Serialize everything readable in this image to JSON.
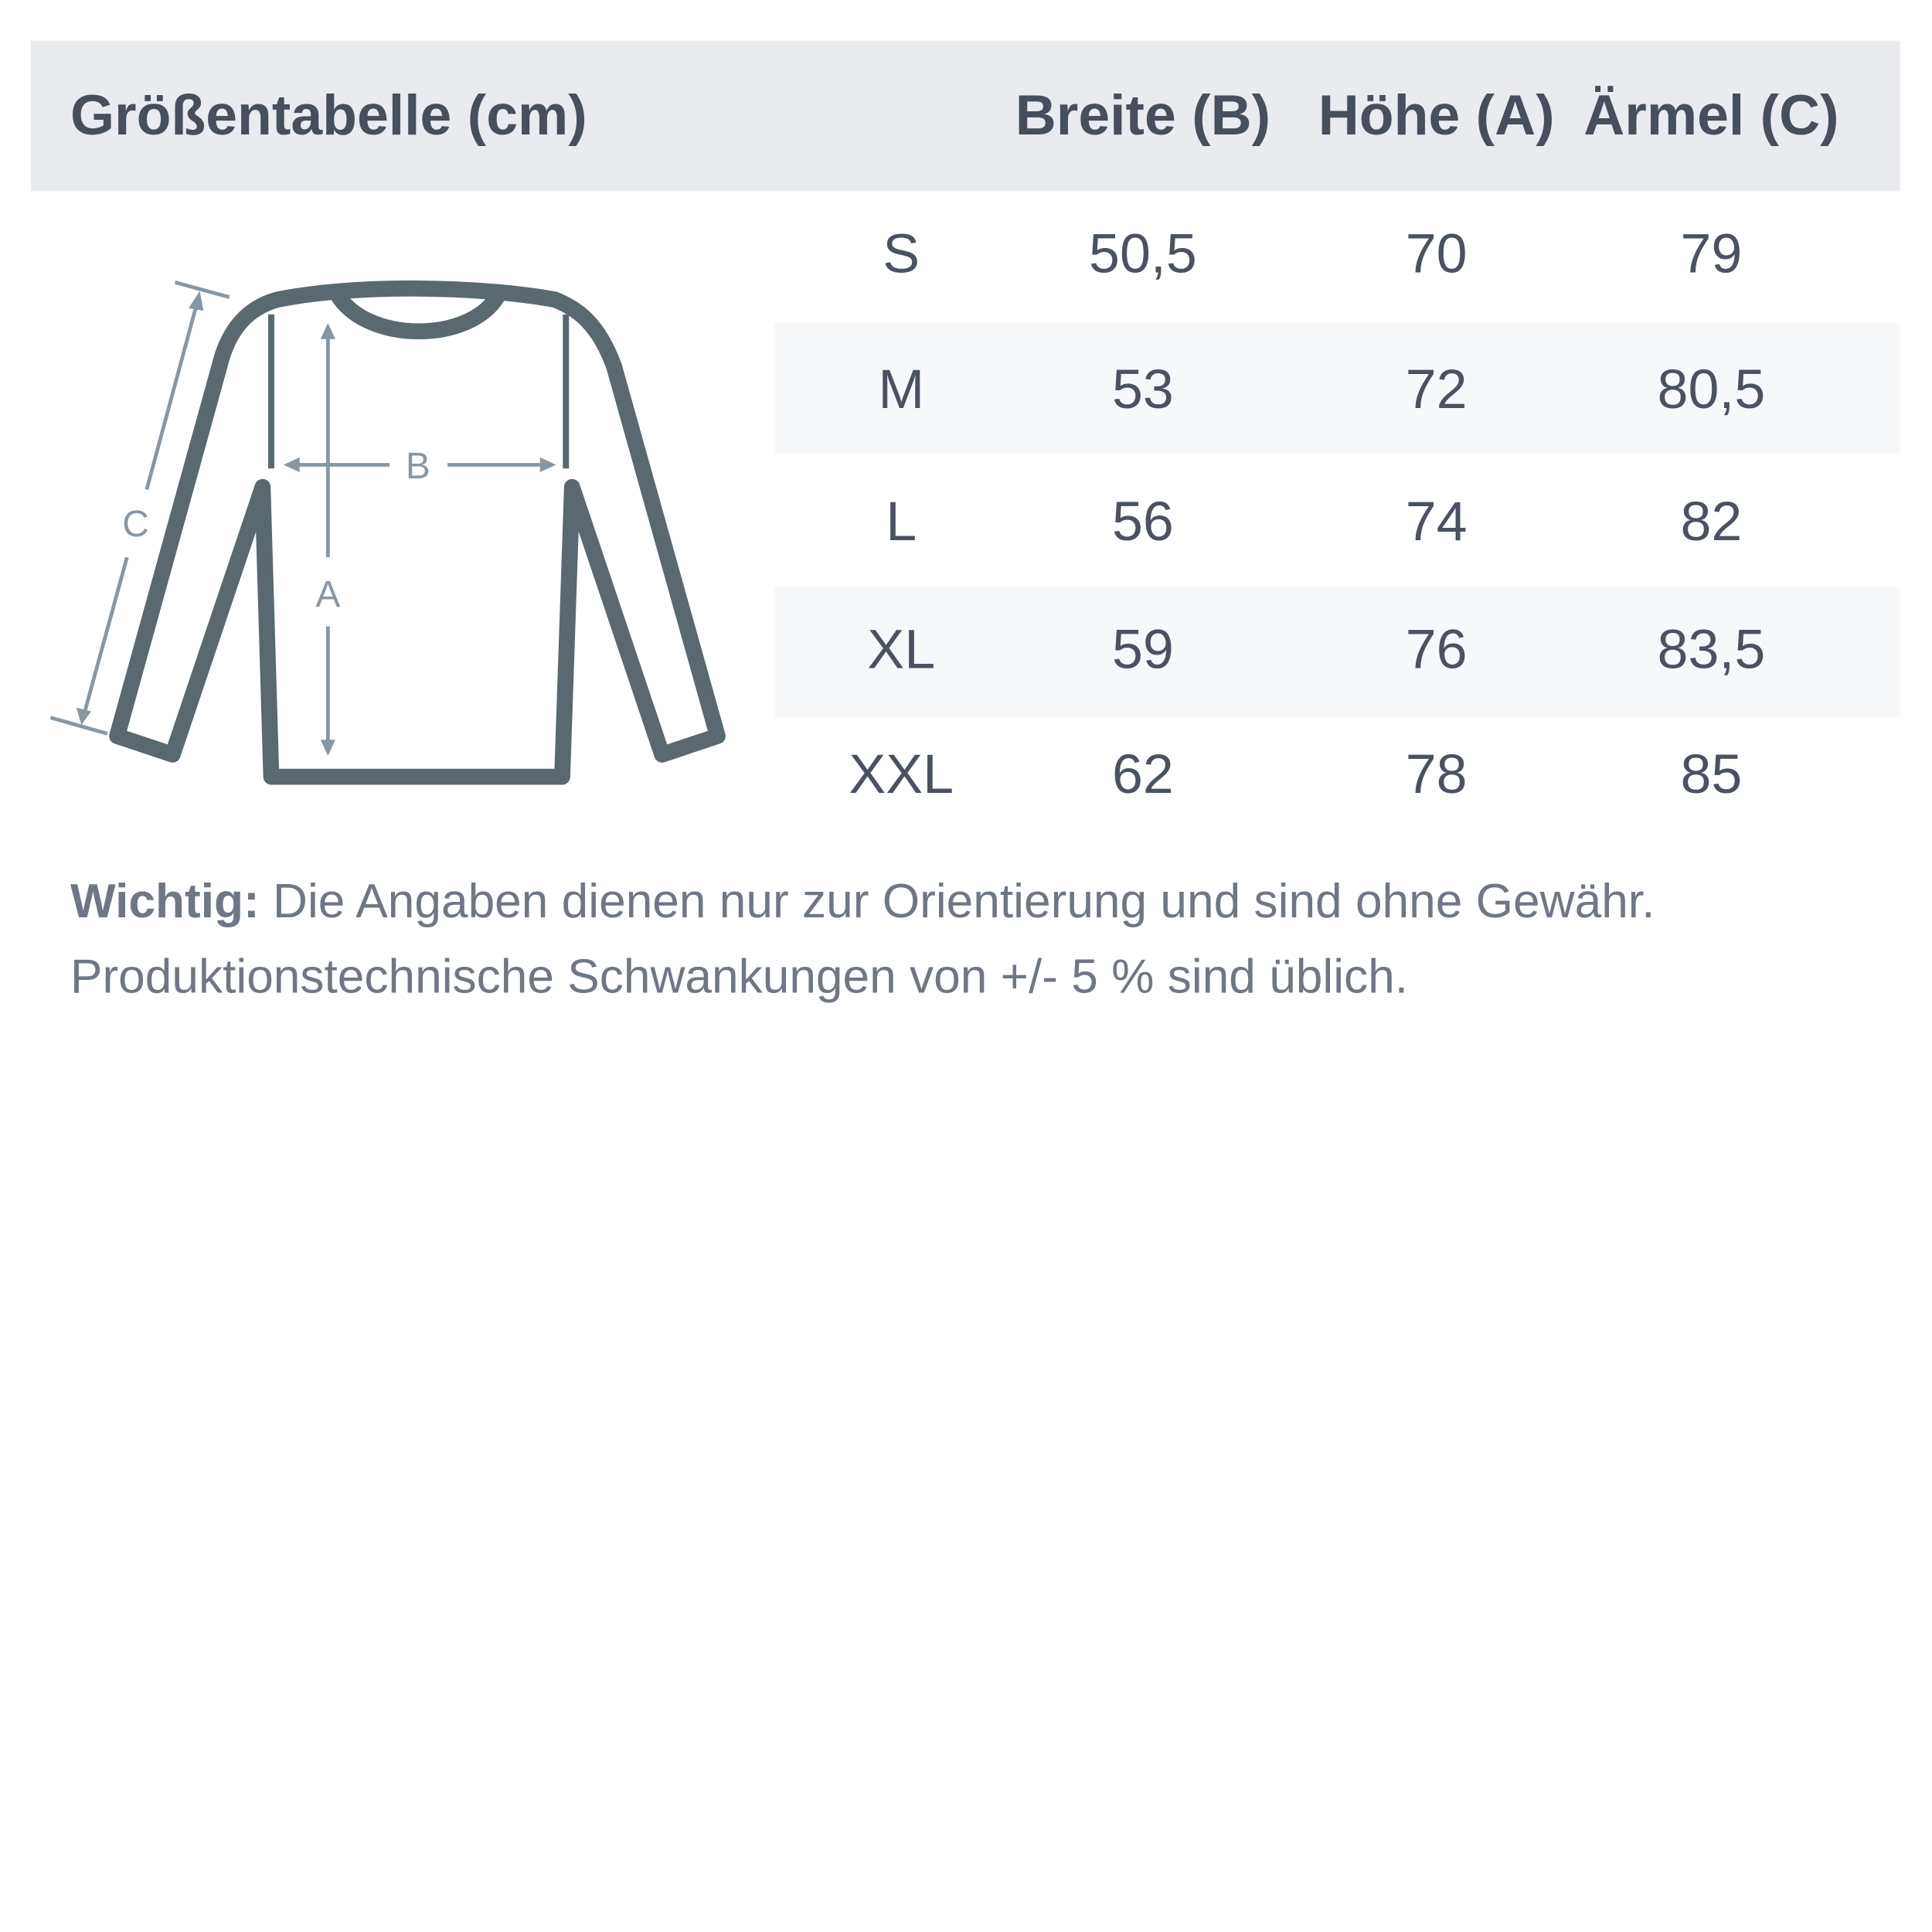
{
  "title": "Größentabelle (cm)",
  "columns": [
    "Breite (B)",
    "Höhe (A)",
    "Ärmel (C)"
  ],
  "rows": [
    {
      "size": "S",
      "values": [
        "50,5",
        "70",
        "79"
      ]
    },
    {
      "size": "M",
      "values": [
        "53",
        "72",
        "80,5"
      ]
    },
    {
      "size": "L",
      "values": [
        "56",
        "74",
        "82"
      ]
    },
    {
      "size": "XL",
      "values": [
        "59",
        "76",
        "83,5"
      ]
    },
    {
      "size": "XXL",
      "values": [
        "62",
        "78",
        "85"
      ]
    }
  ],
  "diagram": {
    "label_b": "B",
    "label_a": "A",
    "label_c": "C"
  },
  "note": {
    "bold": "Wichtig:",
    "line1": " Die Angaben dienen nur zur Orientierung und sind ohne Gewähr.",
    "line2": "Produktionstechnische Schwankungen von +/- 5 % sind üblich."
  },
  "colors": {
    "header_bg": "#e9ebef",
    "stripe_bg": "#f7f8fa",
    "shirt": "#5a6870",
    "arrows": "#8796a3"
  }
}
